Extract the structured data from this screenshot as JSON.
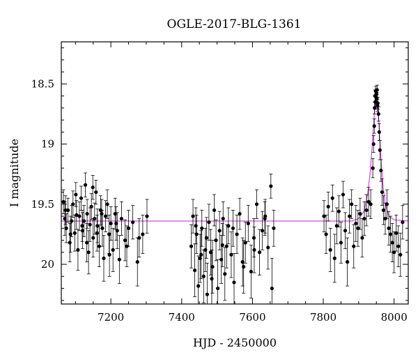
{
  "chart_data": {
    "type": "scatter",
    "title": "OGLE-2017-BLG-1361",
    "xlabel": "HJD - 2450000",
    "ylabel": "I magnitude",
    "xlim": [
      7060,
      8040
    ],
    "ylim": [
      20.33,
      18.15
    ],
    "y_inverted": true,
    "x_ticks": [
      7200,
      7400,
      7600,
      7800,
      8000
    ],
    "x_tick_labels": [
      "7200",
      "7400",
      "7600",
      "7800",
      "8000"
    ],
    "y_ticks": [
      18.5,
      19,
      19.5,
      20
    ],
    "y_tick_labels": [
      "18.5",
      "19",
      "19.5",
      "20"
    ],
    "model_color": "#e040e8",
    "point_color": "#000000",
    "model": {
      "baseline": 19.64,
      "t0": 7950,
      "peak_mag": 18.55,
      "tE": 14,
      "x": [
        7060,
        7880,
        7900,
        7915,
        7925,
        7932,
        7938,
        7943,
        7947,
        7950,
        7953,
        7957,
        7962,
        7968,
        7975,
        7985,
        8000,
        8040
      ],
      "y": [
        19.64,
        19.64,
        19.62,
        19.56,
        19.42,
        19.25,
        19.02,
        18.8,
        18.62,
        18.55,
        18.62,
        18.82,
        19.08,
        19.33,
        19.5,
        19.6,
        19.63,
        19.64
      ]
    },
    "series": [
      {
        "x": [
          7066,
          7070,
          7074,
          7079,
          7084,
          7089,
          7093,
          7098,
          7103,
          7107,
          7111,
          7116,
          7120,
          7124,
          7128,
          7133,
          7137,
          7141,
          7145,
          7150,
          7154,
          7158,
          7162,
          7167,
          7171,
          7176,
          7180,
          7185,
          7190,
          7195,
          7200,
          7206,
          7212,
          7218,
          7224,
          7230,
          7240,
          7250,
          7262,
          7275,
          7290,
          7302,
          7072,
          7086,
          7101,
          7119,
          7132,
          7149,
          7161,
          7174,
          7196,
          7215,
          7245,
          7280,
          7427,
          7432,
          7437,
          7442,
          7447,
          7452,
          7457,
          7462,
          7467,
          7472,
          7477,
          7482,
          7487,
          7492,
          7497,
          7502,
          7507,
          7512,
          7517,
          7522,
          7527,
          7532,
          7540,
          7548,
          7556,
          7564,
          7572,
          7580,
          7588,
          7596,
          7604,
          7612,
          7620,
          7628,
          7636,
          7644,
          7652,
          7660,
          7440,
          7455,
          7470,
          7485,
          7515,
          7545,
          7575,
          7605,
          7635,
          7655,
          7802,
          7808,
          7814,
          7820,
          7826,
          7832,
          7838,
          7844,
          7850,
          7856,
          7862,
          7868,
          7874,
          7880,
          7886,
          7892,
          7898,
          7904,
          7910,
          7916,
          7922,
          7928,
          7934,
          7940,
          7942,
          7944,
          7945,
          7946,
          7947,
          7948,
          7949,
          7950,
          7951,
          7952,
          7953,
          7954,
          7956,
          7958,
          7960,
          7963,
          7966,
          7970,
          7975,
          7980,
          7985,
          7990,
          7995,
          8000,
          8006,
          8012,
          8018,
          8024
        ],
        "y": [
          19.48,
          19.62,
          19.7,
          19.55,
          19.82,
          19.64,
          19.5,
          19.74,
          19.59,
          19.88,
          19.6,
          19.45,
          19.72,
          19.64,
          19.34,
          19.58,
          19.9,
          19.67,
          19.52,
          19.78,
          19.62,
          19.4,
          19.68,
          19.85,
          19.55,
          19.7,
          19.95,
          19.6,
          19.5,
          19.75,
          19.66,
          19.88,
          19.58,
          19.72,
          19.96,
          19.62,
          19.8,
          19.7,
          19.65,
          19.98,
          19.75,
          19.6,
          19.55,
          19.75,
          19.42,
          19.68,
          19.82,
          19.36,
          19.74,
          19.58,
          19.92,
          19.66,
          19.85,
          19.78,
          19.85,
          19.6,
          20.05,
          19.75,
          20.18,
          19.95,
          19.7,
          20.1,
          19.88,
          20.25,
          19.65,
          19.9,
          20.02,
          19.55,
          19.8,
          20.2,
          19.72,
          19.96,
          19.62,
          20.08,
          19.85,
          19.68,
          19.92,
          20.15,
          19.75,
          19.58,
          19.98,
          19.82,
          19.66,
          20.06,
          19.78,
          19.5,
          19.9,
          19.72,
          19.6,
          19.86,
          19.35,
          19.7,
          19.68,
          19.92,
          19.78,
          20.12,
          19.84,
          19.7,
          20.02,
          19.88,
          19.62,
          20.2,
          19.6,
          19.75,
          19.52,
          19.88,
          19.45,
          19.95,
          19.68,
          19.56,
          19.82,
          19.42,
          19.72,
          19.98,
          19.6,
          19.5,
          19.85,
          19.66,
          19.7,
          19.58,
          19.78,
          19.62,
          19.55,
          19.48,
          19.5,
          19.2,
          19.0,
          18.85,
          18.7,
          18.6,
          18.65,
          18.56,
          18.6,
          18.58,
          18.62,
          18.55,
          18.68,
          18.66,
          18.75,
          18.9,
          19.05,
          19.22,
          19.4,
          19.55,
          19.62,
          19.5,
          19.7,
          19.75,
          19.82,
          19.9,
          19.74,
          19.85,
          19.92,
          19.65
        ],
        "err": [
          0.1,
          0.14,
          0.12,
          0.1,
          0.16,
          0.13,
          0.11,
          0.15,
          0.12,
          0.17,
          0.12,
          0.1,
          0.15,
          0.13,
          0.1,
          0.12,
          0.18,
          0.14,
          0.11,
          0.16,
          0.13,
          0.1,
          0.14,
          0.17,
          0.12,
          0.15,
          0.19,
          0.13,
          0.12,
          0.16,
          0.14,
          0.18,
          0.13,
          0.15,
          0.2,
          0.14,
          0.17,
          0.15,
          0.14,
          0.2,
          0.16,
          0.14,
          0.12,
          0.15,
          0.1,
          0.13,
          0.16,
          0.1,
          0.15,
          0.12,
          0.18,
          0.14,
          0.17,
          0.16,
          0.18,
          0.14,
          0.22,
          0.16,
          0.25,
          0.2,
          0.15,
          0.22,
          0.18,
          0.26,
          0.15,
          0.19,
          0.22,
          0.13,
          0.17,
          0.24,
          0.16,
          0.2,
          0.14,
          0.22,
          0.18,
          0.15,
          0.19,
          0.24,
          0.16,
          0.13,
          0.2,
          0.17,
          0.15,
          0.22,
          0.16,
          0.12,
          0.19,
          0.16,
          0.14,
          0.18,
          0.1,
          0.15,
          0.15,
          0.2,
          0.17,
          0.24,
          0.18,
          0.15,
          0.22,
          0.19,
          0.14,
          0.25,
          0.13,
          0.16,
          0.12,
          0.18,
          0.11,
          0.2,
          0.15,
          0.13,
          0.17,
          0.11,
          0.15,
          0.2,
          0.14,
          0.12,
          0.18,
          0.15,
          0.15,
          0.13,
          0.16,
          0.14,
          0.13,
          0.12,
          0.12,
          0.08,
          0.07,
          0.06,
          0.05,
          0.05,
          0.05,
          0.04,
          0.05,
          0.04,
          0.05,
          0.04,
          0.05,
          0.05,
          0.06,
          0.07,
          0.08,
          0.09,
          0.11,
          0.12,
          0.13,
          0.12,
          0.14,
          0.15,
          0.16,
          0.17,
          0.15,
          0.17,
          0.18,
          0.14
        ]
      }
    ]
  }
}
